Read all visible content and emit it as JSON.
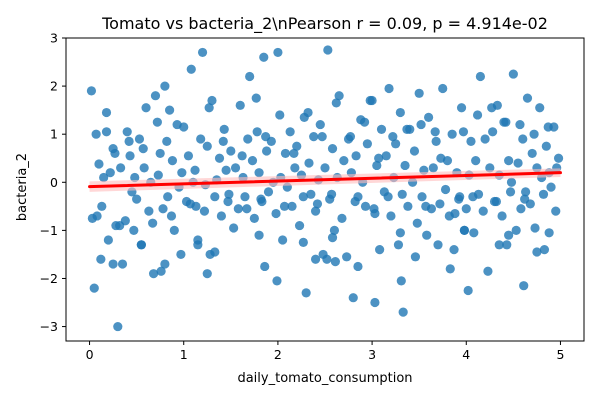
{
  "chart_data": {
    "type": "scatter",
    "title": "Tomato vs bacteria_2\\nPearson r = 0.09, p = 4.914e-02",
    "xlabel": "daily_tomato_consumption",
    "ylabel": "bacteria_2",
    "xlim": [
      -0.25,
      5.25
    ],
    "ylim": [
      -3.3,
      3.0
    ],
    "xticks": [
      "0",
      "1",
      "2",
      "3",
      "4",
      "5"
    ],
    "yticks": [
      "-3",
      "-2",
      "-1",
      "0",
      "1",
      "2",
      "3"
    ],
    "grid": false,
    "legend": "none",
    "colors": {
      "points": "#1f77b4",
      "regression_line": "#ff0000",
      "confidence_band": "#ffbcbc"
    },
    "regression": {
      "x": [
        0.0,
        5.0
      ],
      "y": [
        -0.09,
        0.2
      ],
      "ci_halfwidth": [
        0.11,
        0.09
      ]
    },
    "series": [
      {
        "x": [
          0.02,
          0.03,
          0.05,
          0.07,
          0.1,
          0.13,
          0.15,
          0.18,
          0.2,
          0.22,
          0.25,
          0.28,
          0.3,
          0.33,
          0.35,
          0.38,
          0.4,
          0.43,
          0.45,
          0.48,
          0.5,
          0.53,
          0.55,
          0.58,
          0.6,
          0.63,
          0.65,
          0.68,
          0.7,
          0.73,
          0.75,
          0.78,
          0.8,
          0.83,
          0.85,
          0.88,
          0.9,
          0.93,
          0.95,
          0.98,
          1.0,
          1.03,
          1.05,
          1.08,
          1.1,
          1.13,
          1.15,
          1.18,
          1.2,
          1.23,
          1.25,
          1.28,
          1.3,
          1.33,
          1.35,
          1.38,
          1.4,
          1.43,
          1.45,
          1.48,
          1.5,
          1.53,
          1.55,
          1.58,
          1.6,
          1.63,
          1.65,
          1.68,
          1.7,
          1.73,
          1.75,
          1.78,
          1.8,
          1.83,
          1.85,
          1.88,
          1.9,
          1.93,
          1.95,
          1.98,
          2.0,
          2.03,
          2.05,
          2.08,
          2.1,
          2.13,
          2.15,
          2.18,
          2.2,
          2.23,
          2.25,
          2.28,
          2.3,
          2.33,
          2.35,
          2.38,
          2.4,
          2.43,
          2.45,
          2.48,
          2.5,
          2.53,
          2.55,
          2.58,
          2.6,
          2.63,
          2.65,
          2.68,
          2.7,
          2.73,
          2.75,
          2.78,
          2.8,
          2.83,
          2.85,
          2.88,
          2.9,
          2.93,
          2.95,
          2.98,
          3.0,
          3.03,
          3.05,
          3.08,
          3.1,
          3.13,
          3.15,
          3.18,
          3.2,
          3.23,
          3.25,
          3.28,
          3.3,
          3.33,
          3.35,
          3.38,
          3.4,
          3.43,
          3.45,
          3.48,
          3.5,
          3.53,
          3.55,
          3.58,
          3.6,
          3.63,
          3.65,
          3.68,
          3.7,
          3.73,
          3.75,
          3.78,
          3.8,
          3.83,
          3.85,
          3.88,
          3.9,
          3.93,
          3.95,
          3.98,
          4.0,
          4.03,
          4.05,
          4.08,
          4.1,
          4.13,
          4.15,
          4.18,
          4.2,
          4.23,
          4.25,
          4.28,
          4.3,
          4.33,
          4.35,
          4.38,
          4.4,
          4.43,
          4.45,
          4.48,
          4.5,
          4.53,
          4.55,
          4.58,
          4.6,
          4.63,
          4.65,
          4.68,
          4.7,
          4.73,
          4.75,
          4.78,
          4.8,
          4.83,
          4.85,
          4.88,
          4.9,
          4.93,
          4.95,
          4.98,
          0.08,
          0.18,
          0.27,
          0.42,
          0.57,
          0.72,
          0.82,
          0.97,
          1.12,
          1.27,
          1.42,
          1.62,
          1.77,
          1.87,
          2.02,
          2.17,
          2.32,
          2.47,
          2.62,
          2.77,
          2.92,
          3.07,
          3.22,
          3.37,
          3.52,
          3.67,
          3.82,
          3.97,
          4.12,
          4.27,
          4.42,
          4.57,
          4.72,
          4.87,
          4.96,
          0.12,
          0.32,
          0.47,
          0.67,
          0.87,
          1.07,
          1.22,
          1.47,
          1.67,
          1.82,
          2.07,
          2.27,
          2.42,
          2.57,
          2.82,
          3.02,
          3.17,
          3.32,
          3.57,
          3.72,
          3.92,
          4.07,
          4.32,
          4.47,
          4.62,
          4.82,
          0.25,
          0.76,
          1.33,
          1.86,
          2.52,
          2.61,
          3.03,
          3.31,
          4.02,
          4.61,
          0.55,
          1.15,
          1.8,
          2.27,
          2.58,
          3.3,
          3.98,
          4.45,
          4.88,
          0.8,
          1.25,
          1.99,
          2.4,
          2.85,
          3.46,
          3.87,
          4.35,
          4.75
        ],
        "y": [
          1.9,
          -0.75,
          -2.2,
          1.0,
          0.38,
          -0.5,
          0.1,
          1.05,
          -1.2,
          0.2,
          0.7,
          -0.9,
          -3.0,
          0.3,
          -1.7,
          -0.8,
          1.05,
          0.55,
          -0.2,
          0.1,
          -0.35,
          0.9,
          -1.3,
          0.3,
          1.55,
          -0.6,
          0.0,
          -1.9,
          1.8,
          0.15,
          0.6,
          -0.55,
          2.0,
          -0.3,
          1.5,
          0.45,
          -1.0,
          1.2,
          -0.1,
          0.2,
          1.15,
          -0.4,
          0.55,
          2.35,
          0.0,
          -0.5,
          -1.3,
          0.9,
          2.7,
          -0.05,
          0.75,
          -1.5,
          1.7,
          -0.3,
          0.05,
          0.5,
          -0.7,
          1.1,
          0.25,
          -0.25,
          0.65,
          -0.95,
          0.3,
          -0.55,
          1.6,
          0.1,
          -0.3,
          0.9,
          2.2,
          0.45,
          -0.75,
          1.05,
          0.2,
          -0.4,
          2.6,
          0.65,
          -0.2,
          0.85,
          0.0,
          -0.65,
          2.7,
          0.1,
          -1.2,
          0.6,
          -0.1,
          1.05,
          -0.5,
          0.3,
          0.75,
          -0.9,
          0.15,
          1.35,
          -2.3,
          0.4,
          -0.25,
          0.95,
          -0.6,
          0.05,
          1.2,
          -1.5,
          0.3,
          2.75,
          -0.35,
          0.7,
          -1.0,
          0.1,
          1.8,
          -0.75,
          0.45,
          -1.55,
          0.9,
          0.2,
          -2.4,
          0.55,
          -0.3,
          1.3,
          0.0,
          -0.5,
          0.8,
          1.7,
          1.7,
          -0.65,
          0.35,
          -1.4,
          1.1,
          -0.2,
          0.55,
          1.95,
          -0.7,
          0.1,
          0.8,
          -1.3,
          1.45,
          -2.7,
          0.35,
          -0.5,
          1.1,
          0.0,
          0.65,
          -0.85,
          1.85,
          -0.3,
          0.25,
          -1.1,
          1.35,
          -0.55,
          0.3,
          0.85,
          -1.3,
          0.5,
          1.95,
          -0.15,
          0.45,
          -1.8,
          1.0,
          -0.65,
          0.2,
          -0.3,
          1.55,
          -1.0,
          -0.55,
          0.15,
          0.85,
          -1.05,
          0.45,
          -0.25,
          2.2,
          -0.6,
          0.9,
          -1.85,
          0.3,
          1.05,
          -0.4,
          1.6,
          0.15,
          -0.7,
          1.25,
          -1.3,
          0.45,
          0.0,
          2.25,
          -1.0,
          0.4,
          -0.55,
          0.9,
          -0.2,
          1.75,
          -0.45,
          0.6,
          -0.95,
          0.3,
          1.55,
          0.1,
          -1.4,
          0.75,
          0.2,
          -0.1,
          1.15,
          -0.6,
          0.5,
          -0.7,
          1.45,
          0.6,
          0.85,
          0.7,
          1.25,
          0.85,
          -1.5,
          0.25,
          1.55,
          0.85,
          0.55,
          1.75,
          0.95,
          1.4,
          0.6,
          1.45,
          0.95,
          1.65,
          0.95,
          1.25,
          0.5,
          0.95,
          1.1,
          1.2,
          1.05,
          -0.7,
          1.05,
          1.4,
          1.55,
          1.25,
          1.2,
          1.0,
          1.15,
          0.3,
          -1.6,
          -0.9,
          -1.0,
          -0.85,
          -0.7,
          -0.45,
          -0.6,
          -0.4,
          -0.55,
          -0.35,
          -0.5,
          -0.3,
          -0.45,
          -0.25,
          -0.4,
          -0.55,
          -0.3,
          -0.25,
          -0.5,
          -0.45,
          -0.35,
          -0.3,
          -0.4,
          -0.2,
          -0.35,
          -0.25,
          -1.7,
          -1.85,
          -1.45,
          -1.75,
          -1.6,
          -1.65,
          -2.5,
          -2.05,
          -2.25,
          -2.15,
          -1.3,
          -1.2,
          -1.1,
          -1.25,
          -1.15,
          -1.05,
          -1.0,
          -1.1,
          -1.05,
          -1.7,
          -1.9,
          -2.05,
          -1.6,
          -1.75,
          -1.55,
          -1.4,
          -1.3,
          -1.45
        ]
      }
    ]
  }
}
